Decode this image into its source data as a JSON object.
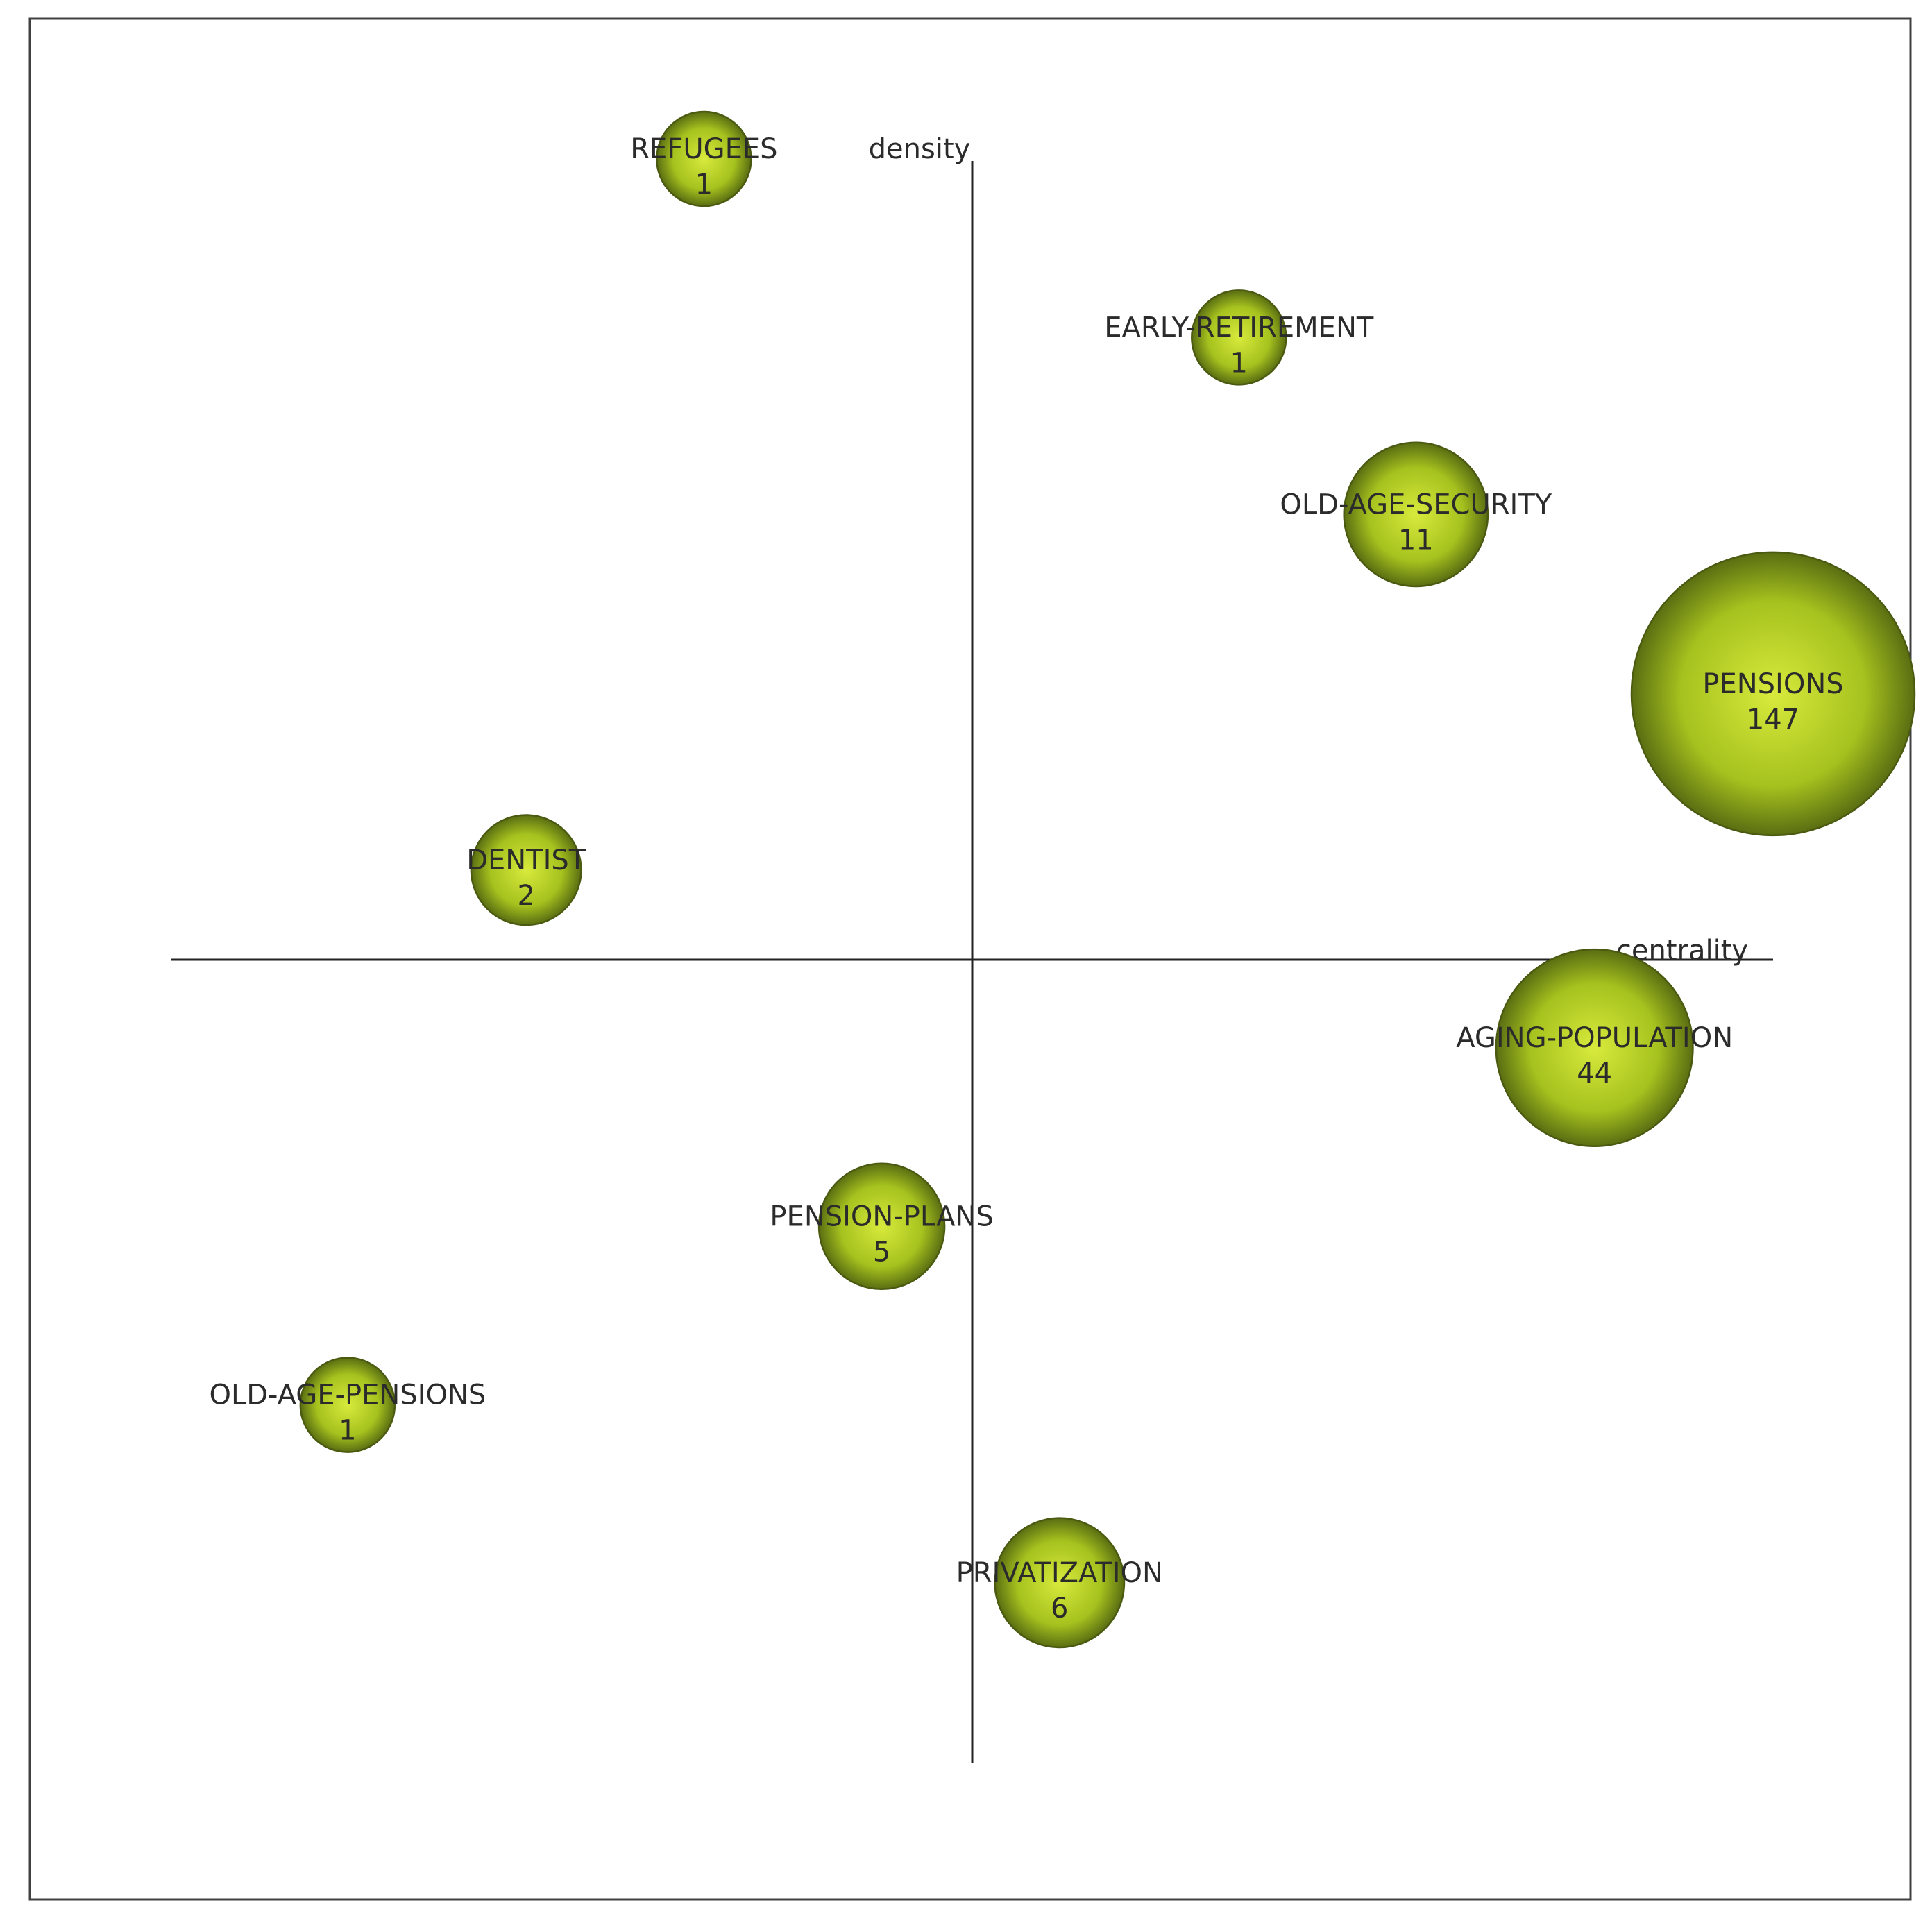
{
  "colors": {
    "bubble_highlight": "#d8ea3c",
    "bubble_mid": "#a6c21e",
    "bubble_edge": "#5a6e12",
    "axis": "#222222"
  },
  "chart_data": {
    "type": "scatter",
    "title": "",
    "xlabel": "centrality",
    "ylabel": "density",
    "xlim": [
      -1,
      1
    ],
    "ylim": [
      -1,
      1
    ],
    "grid": false,
    "legend": "none",
    "size_field": "documents",
    "points": [
      {
        "label": "REFUGEES",
        "count": "1",
        "documents": 1,
        "x": -0.335,
        "y": 1.0
      },
      {
        "label": "EARLY-RETIREMENT",
        "count": "1",
        "documents": 1,
        "x": 0.333,
        "y": 0.777
      },
      {
        "label": "OLD-AGE-SECURITY",
        "count": "11",
        "documents": 11,
        "x": 0.554,
        "y": 0.556
      },
      {
        "label": "PENSIONS",
        "count": "147",
        "documents": 147,
        "x": 1.0,
        "y": 0.332
      },
      {
        "label": "DENTIST",
        "count": "2",
        "documents": 2,
        "x": -0.557,
        "y": 0.112
      },
      {
        "label": "AGING-POPULATION",
        "count": "44",
        "documents": 44,
        "x": 0.777,
        "y": -0.11
      },
      {
        "label": "PENSION-PLANS",
        "count": "5",
        "documents": 5,
        "x": -0.113,
        "y": -0.333
      },
      {
        "label": "OLD-AGE-PENSIONS",
        "count": "1",
        "documents": 1,
        "x": -0.78,
        "y": -0.556
      },
      {
        "label": "PRIVATIZATION",
        "count": "6",
        "documents": 6,
        "x": 0.109,
        "y": -0.778
      }
    ]
  }
}
